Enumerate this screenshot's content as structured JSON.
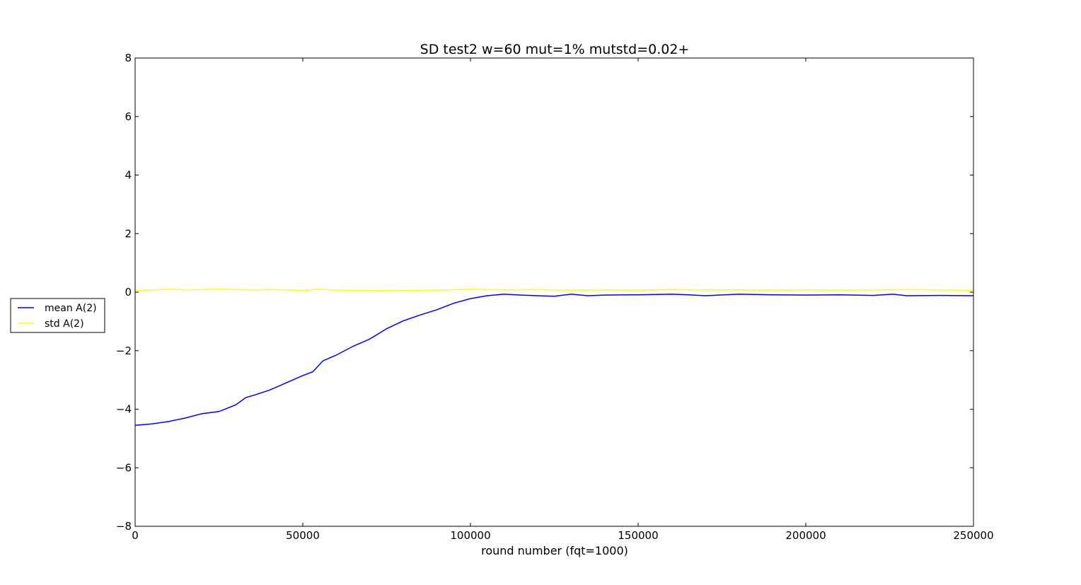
{
  "chart_data": {
    "type": "line",
    "title": "SD test2 w=60 mut=1% mutstd=0.02+",
    "xlabel": "round number (fqt=1000)",
    "ylabel": "",
    "xlim": [
      0,
      250000
    ],
    "ylim": [
      -8,
      8
    ],
    "x_ticks": [
      0,
      50000,
      100000,
      150000,
      200000,
      250000
    ],
    "x_tick_labels": [
      "0",
      "50000",
      "100000",
      "150000",
      "200000",
      "250000"
    ],
    "y_ticks": [
      -8,
      -6,
      -4,
      -2,
      0,
      2,
      4,
      6,
      8
    ],
    "y_tick_labels": [
      "−8",
      "−6",
      "−4",
      "−2",
      "0",
      "2",
      "4",
      "6",
      "8"
    ],
    "grid": false,
    "legend_placement": "outside-left",
    "series": [
      {
        "name": "mean A(2)",
        "color": "#0000ff",
        "x": [
          0,
          5000,
          10000,
          15000,
          20000,
          25000,
          30000,
          33000,
          36000,
          40000,
          45000,
          50000,
          53000,
          56000,
          60000,
          65000,
          70000,
          75000,
          80000,
          85000,
          90000,
          95000,
          100000,
          105000,
          110000,
          115000,
          120000,
          125000,
          130000,
          135000,
          140000,
          150000,
          160000,
          165000,
          170000,
          180000,
          190000,
          200000,
          210000,
          220000,
          226000,
          230000,
          240000,
          250000
        ],
        "y": [
          -4.55,
          -4.5,
          -4.42,
          -4.3,
          -4.15,
          -4.08,
          -3.85,
          -3.6,
          -3.5,
          -3.35,
          -3.1,
          -2.85,
          -2.72,
          -2.35,
          -2.15,
          -1.85,
          -1.6,
          -1.25,
          -0.98,
          -0.78,
          -0.6,
          -0.38,
          -0.22,
          -0.12,
          -0.07,
          -0.1,
          -0.12,
          -0.14,
          -0.07,
          -0.12,
          -0.1,
          -0.09,
          -0.07,
          -0.09,
          -0.12,
          -0.07,
          -0.09,
          -0.1,
          -0.09,
          -0.11,
          -0.07,
          -0.12,
          -0.11,
          -0.12
        ]
      },
      {
        "name": "std A(2)",
        "color": "#ffff00",
        "x": [
          0,
          5000,
          10000,
          15000,
          20000,
          25000,
          30000,
          35000,
          40000,
          45000,
          50000,
          55000,
          60000,
          70000,
          80000,
          90000,
          100000,
          110000,
          120000,
          130000,
          140000,
          150000,
          160000,
          170000,
          180000,
          190000,
          200000,
          210000,
          220000,
          230000,
          240000,
          250000
        ],
        "y": [
          0.05,
          0.08,
          0.1,
          0.08,
          0.09,
          0.1,
          0.09,
          0.08,
          0.09,
          0.08,
          0.06,
          0.1,
          0.07,
          0.06,
          0.05,
          0.07,
          0.1,
          0.08,
          0.09,
          0.07,
          0.08,
          0.07,
          0.09,
          0.08,
          0.08,
          0.07,
          0.08,
          0.07,
          0.08,
          0.09,
          0.08,
          0.06
        ]
      }
    ]
  }
}
